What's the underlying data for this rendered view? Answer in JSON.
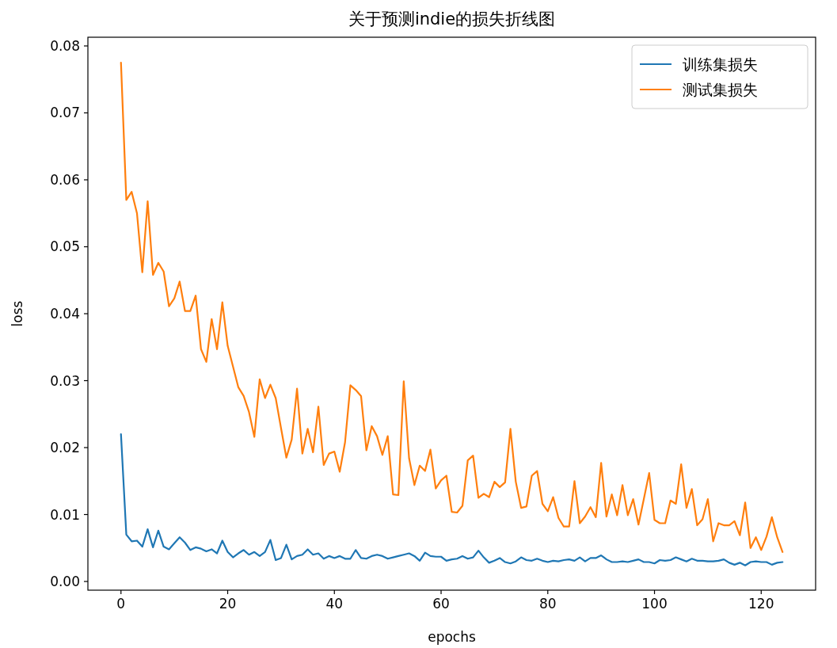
{
  "chart_data": {
    "type": "line",
    "title": "关于预测indie的损失折线图",
    "xlabel": "epochs",
    "ylabel": "loss",
    "x": [
      0,
      1,
      2,
      3,
      4,
      5,
      6,
      7,
      8,
      9,
      10,
      11,
      12,
      13,
      14,
      15,
      16,
      17,
      18,
      19,
      20,
      21,
      22,
      23,
      24,
      25,
      26,
      27,
      28,
      29,
      30,
      31,
      32,
      33,
      34,
      35,
      36,
      37,
      38,
      39,
      40,
      41,
      42,
      43,
      44,
      45,
      46,
      47,
      48,
      49,
      50,
      51,
      52,
      53,
      54,
      55,
      56,
      57,
      58,
      59,
      60,
      61,
      62,
      63,
      64,
      65,
      66,
      67,
      68,
      69,
      70,
      71,
      72,
      73,
      74,
      75,
      76,
      77,
      78,
      79,
      80,
      81,
      82,
      83,
      84,
      85,
      86,
      87,
      88,
      89,
      90,
      91,
      92,
      93,
      94,
      95,
      96,
      97,
      98,
      99,
      100,
      101,
      102,
      103,
      104,
      105,
      106,
      107,
      108,
      109,
      110,
      111,
      112,
      113,
      114,
      115,
      116,
      117,
      118,
      119,
      120,
      121,
      122,
      123,
      124
    ],
    "series": [
      {
        "name": "训练集损失",
        "color": "#1f77b4",
        "values": [
          0.022,
          0.007,
          0.006,
          0.0061,
          0.0052,
          0.0078,
          0.0051,
          0.0076,
          0.0052,
          0.0048,
          0.0057,
          0.0066,
          0.0058,
          0.0047,
          0.0051,
          0.0049,
          0.0045,
          0.0048,
          0.0042,
          0.0061,
          0.0044,
          0.0036,
          0.0042,
          0.0047,
          0.004,
          0.0044,
          0.0038,
          0.0044,
          0.0062,
          0.0032,
          0.0035,
          0.0055,
          0.0033,
          0.0038,
          0.004,
          0.0048,
          0.004,
          0.0042,
          0.0034,
          0.0038,
          0.0035,
          0.0038,
          0.0034,
          0.0034,
          0.0047,
          0.0035,
          0.0034,
          0.0038,
          0.004,
          0.0038,
          0.0034,
          0.0036,
          0.0038,
          0.004,
          0.0042,
          0.0038,
          0.0031,
          0.0043,
          0.0038,
          0.0037,
          0.0037,
          0.0031,
          0.0033,
          0.0034,
          0.0038,
          0.0034,
          0.0036,
          0.0046,
          0.0036,
          0.0028,
          0.0031,
          0.0035,
          0.0029,
          0.0027,
          0.003,
          0.0036,
          0.0032,
          0.0031,
          0.0034,
          0.0031,
          0.0029,
          0.0031,
          0.003,
          0.0032,
          0.0033,
          0.0031,
          0.0036,
          0.003,
          0.0035,
          0.0035,
          0.0039,
          0.0033,
          0.0029,
          0.0029,
          0.003,
          0.0029,
          0.0031,
          0.0033,
          0.0029,
          0.0029,
          0.0027,
          0.0032,
          0.0031,
          0.0032,
          0.0036,
          0.0033,
          0.003,
          0.0034,
          0.0031,
          0.0031,
          0.003,
          0.003,
          0.0031,
          0.0033,
          0.0028,
          0.0025,
          0.0028,
          0.0024,
          0.0029,
          0.003,
          0.0029,
          0.0029,
          0.0025,
          0.0028,
          0.0029
        ]
      },
      {
        "name": "测试集损失",
        "color": "#ff7f0e",
        "values": [
          0.0775,
          0.057,
          0.0582,
          0.055,
          0.0462,
          0.0568,
          0.0458,
          0.0476,
          0.0463,
          0.0411,
          0.0423,
          0.0448,
          0.0404,
          0.0404,
          0.0427,
          0.0347,
          0.0328,
          0.0392,
          0.0347,
          0.0417,
          0.0352,
          0.0321,
          0.029,
          0.0277,
          0.0253,
          0.0216,
          0.0302,
          0.0274,
          0.0294,
          0.0274,
          0.0229,
          0.0185,
          0.0212,
          0.0288,
          0.0191,
          0.0228,
          0.0193,
          0.0261,
          0.0174,
          0.0191,
          0.0194,
          0.0164,
          0.0208,
          0.0293,
          0.0286,
          0.0277,
          0.0196,
          0.0232,
          0.0217,
          0.0189,
          0.0217,
          0.013,
          0.0129,
          0.0299,
          0.0184,
          0.0144,
          0.0173,
          0.0165,
          0.0197,
          0.0139,
          0.0151,
          0.0158,
          0.0104,
          0.0103,
          0.0113,
          0.0181,
          0.0188,
          0.0125,
          0.0131,
          0.0126,
          0.0149,
          0.0141,
          0.0148,
          0.0228,
          0.0149,
          0.011,
          0.0112,
          0.0158,
          0.0165,
          0.0116,
          0.0105,
          0.0126,
          0.0095,
          0.0082,
          0.0082,
          0.015,
          0.0087,
          0.0097,
          0.0111,
          0.0096,
          0.0177,
          0.0097,
          0.013,
          0.0099,
          0.0144,
          0.0099,
          0.0123,
          0.0085,
          0.0123,
          0.0162,
          0.0092,
          0.0087,
          0.0087,
          0.0121,
          0.0116,
          0.0175,
          0.011,
          0.0138,
          0.0084,
          0.0093,
          0.0123,
          0.006,
          0.0087,
          0.0084,
          0.0084,
          0.009,
          0.0069,
          0.0118,
          0.005,
          0.0066,
          0.0047,
          0.0067,
          0.0096,
          0.0066,
          0.0044
        ]
      }
    ],
    "xlim": [
      -6.2,
      130.2
    ],
    "ylim": [
      -0.0013,
      0.0813
    ],
    "xticks": [
      0,
      20,
      40,
      60,
      80,
      100,
      120
    ],
    "yticks": [
      {
        "value": 0,
        "label": "0.00"
      },
      {
        "value": 0.01,
        "label": "0.01"
      },
      {
        "value": 0.02,
        "label": "0.02"
      },
      {
        "value": 0.03,
        "label": "0.03"
      },
      {
        "value": 0.04,
        "label": "0.04"
      },
      {
        "value": 0.05,
        "label": "0.05"
      },
      {
        "value": 0.06,
        "label": "0.06"
      },
      {
        "value": 0.07,
        "label": "0.07"
      },
      {
        "value": 0.08,
        "label": "0.08"
      }
    ],
    "legend": "top right",
    "grid": false,
    "marker": "none",
    "line_style": "solid"
  }
}
